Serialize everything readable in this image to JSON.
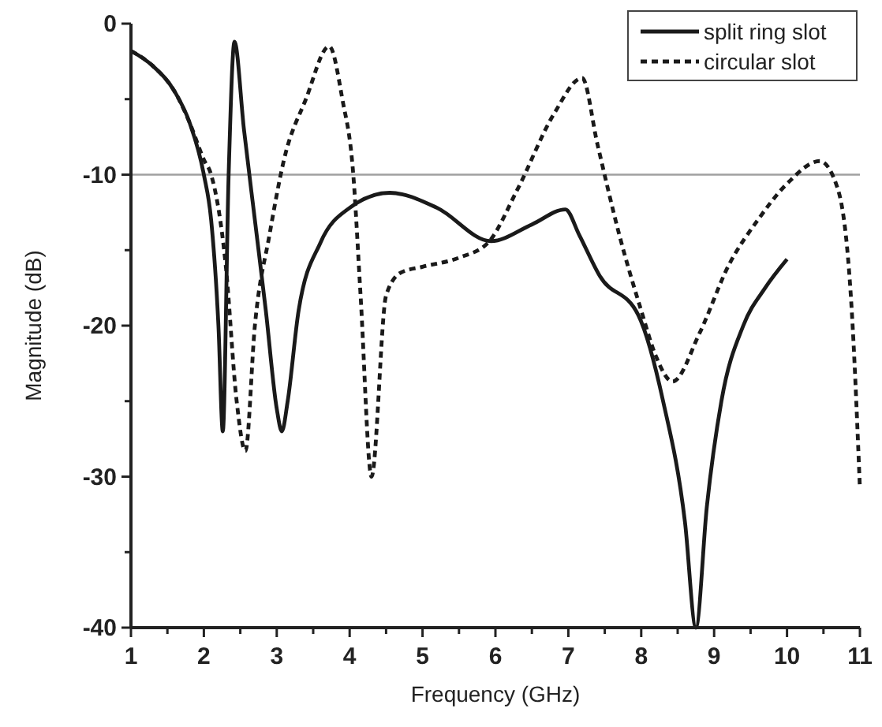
{
  "chart_data": {
    "type": "line",
    "xlabel": "Frequency (GHz)",
    "ylabel": "Magnitude (dB)",
    "xlim": [
      1,
      11
    ],
    "ylim": [
      -40,
      0
    ],
    "xticks": [
      1,
      {
        "value": 1.5,
        "label": null
      },
      2,
      {
        "value": 2.5,
        "label": null
      },
      3,
      {
        "value": 3.5,
        "label": null
      },
      4,
      {
        "value": 4.5,
        "label": null
      },
      5,
      {
        "value": 5.5,
        "label": null
      },
      6,
      {
        "value": 6.5,
        "label": null
      },
      7,
      {
        "value": 7.5,
        "label": null
      },
      8,
      {
        "value": 8.5,
        "label": null
      },
      9,
      {
        "value": 9.5,
        "label": null
      },
      10,
      {
        "value": 10.5,
        "label": null
      },
      11
    ],
    "yticks": [
      -40,
      {
        "value": -35,
        "label": null
      },
      -30,
      {
        "value": -25,
        "label": null
      },
      -20,
      {
        "value": -15,
        "label": null
      },
      -10,
      {
        "value": -5,
        "label": null
      },
      0
    ],
    "grid": false,
    "legend": "top right",
    "marker": "none",
    "ref_lines": [
      {
        "axis": "y",
        "value": -10,
        "color": "#a0a0a0"
      }
    ],
    "series": [
      {
        "name": "split ring slot",
        "color": "#1a1a1a",
        "line_style": "solid",
        "x": [
          1.0,
          1.3,
          1.6,
          1.8,
          2.0,
          2.1,
          2.2,
          2.26,
          2.34,
          2.42,
          2.55,
          2.7,
          2.85,
          3.0,
          3.07,
          3.15,
          3.3,
          3.6,
          4.0,
          4.55,
          5.2,
          5.94,
          6.5,
          6.96,
          7.15,
          7.43,
          7.96,
          8.3,
          8.6,
          8.75,
          8.9,
          9.1,
          9.4,
          9.7,
          10.0
        ],
        "values": [
          -1.8,
          -2.8,
          -4.5,
          -6.5,
          -10,
          -13,
          -20,
          -27,
          -10,
          -1.2,
          -7,
          -13,
          -19,
          -25.5,
          -27,
          -25,
          -19,
          -14.5,
          -12.2,
          -11.2,
          -12.2,
          -14.4,
          -13.3,
          -12.3,
          -14,
          -16.7,
          -19.3,
          -25,
          -33,
          -40,
          -32,
          -25,
          -20,
          -17.5,
          -15.6
        ]
      },
      {
        "name": "circular slot",
        "color": "#1a1a1a",
        "line_style": "dashed",
        "x": [
          1.0,
          1.3,
          1.6,
          1.8,
          2.0,
          2.1,
          2.3,
          2.45,
          2.57,
          2.7,
          2.9,
          3.1,
          3.4,
          3.72,
          3.9,
          4.05,
          4.15,
          4.3,
          4.5,
          4.7,
          5.0,
          5.5,
          5.9,
          6.3,
          6.8,
          7.19,
          7.4,
          7.7,
          8.0,
          8.2,
          8.43,
          8.8,
          9.2,
          9.6,
          10.0,
          10.45,
          10.7,
          10.9,
          11.0
        ],
        "values": [
          -1.8,
          -2.8,
          -4.5,
          -6.5,
          -9,
          -10,
          -16,
          -25,
          -28.3,
          -20,
          -14,
          -9,
          -5,
          -1.5,
          -5,
          -10,
          -18,
          -30,
          -18,
          -16.5,
          -16.1,
          -15.5,
          -14.5,
          -11,
          -6,
          -3.6,
          -8,
          -14,
          -19,
          -22,
          -23.7,
          -20.5,
          -16,
          -13,
          -10.6,
          -9.1,
          -11,
          -20,
          -30.8
        ]
      }
    ]
  }
}
